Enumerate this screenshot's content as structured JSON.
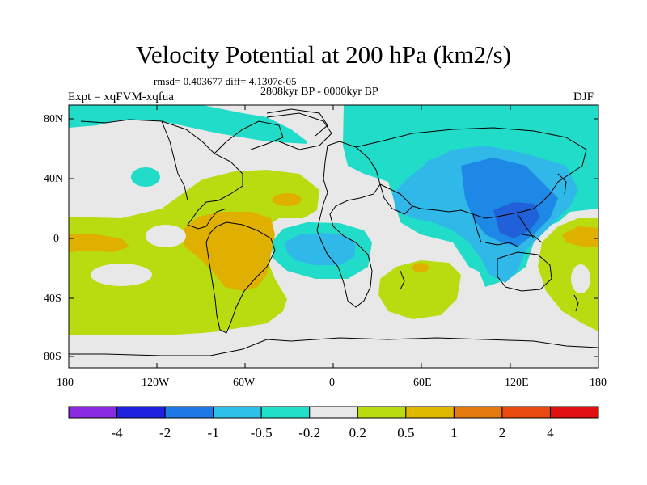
{
  "title": "Velocity Potential at 200 hPa (km2/s)",
  "stats": "rmsd= 0.403677 diff= 4.1307e-05",
  "period": "2808kyr BP - 0000kyr BP",
  "experiment": "Expt = xqFVM-xqfua",
  "season": "DJF",
  "y_axis_labels": [
    "80N",
    "40N",
    "0",
    "40S",
    "80S"
  ],
  "x_axis_labels": [
    "180",
    "120W",
    "60W",
    "0",
    "60E",
    "120E",
    "180"
  ],
  "colorbar": {
    "labels": [
      "-4",
      "-2",
      "-1",
      "-0.5",
      "-0.2",
      "0.2",
      "0.5",
      "1",
      "2",
      "4"
    ],
    "colors": [
      "#8a2be2",
      "#2020e0",
      "#1e78e6",
      "#2ec0e8",
      "#20e0c8",
      "#e8e8e8",
      "#b8dc10",
      "#e0b800",
      "#e47a10",
      "#e84a10",
      "#e01010"
    ]
  },
  "field_colors": {
    "neutral": "#e8e8e8",
    "pos_0_2": "#b8dc10",
    "pos_0_5": "#e0b000",
    "neg_0_2": "#20dcc8",
    "neg_0_5": "#30b8e8",
    "neg_1": "#1e88e6",
    "neg_2": "#2060d8"
  }
}
